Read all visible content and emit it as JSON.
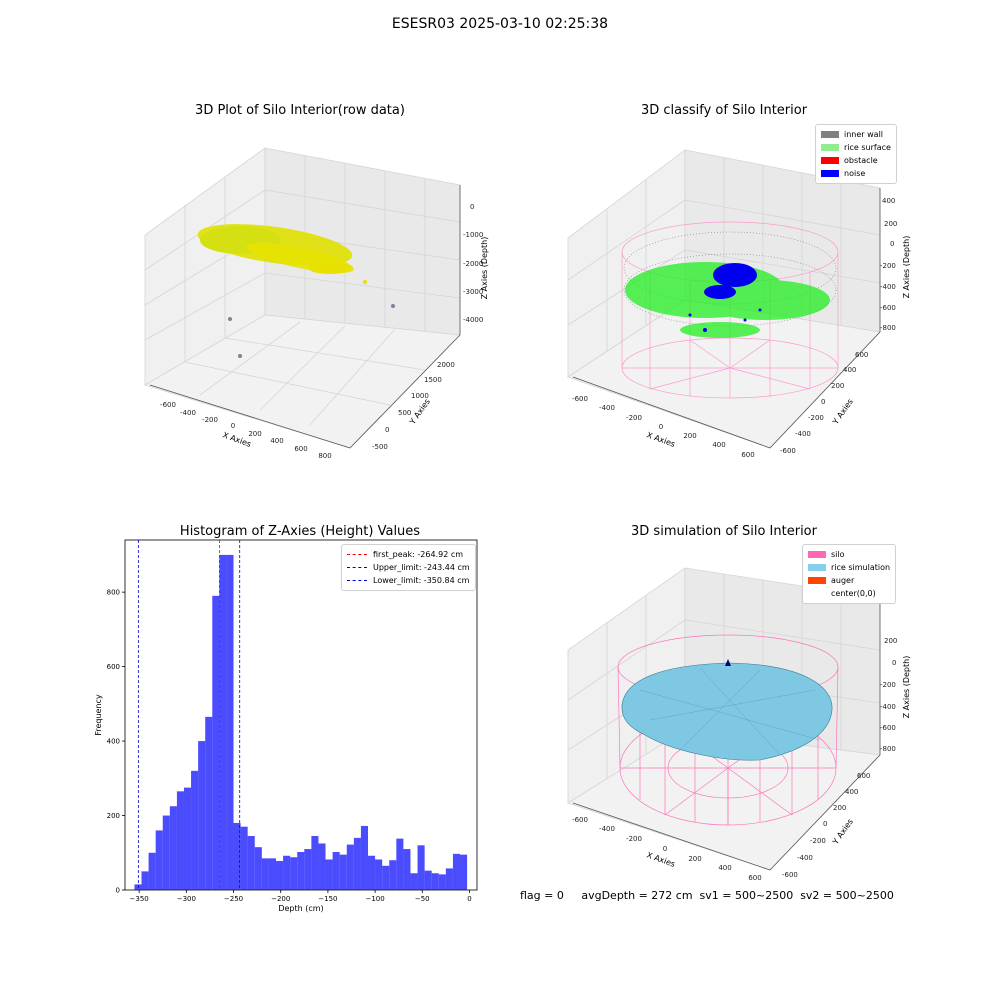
{
  "suptitle": "ESESR03 2025-03-10 02:25:38",
  "panels": {
    "raw": {
      "title": "3D Plot of Silo Interior(row data)",
      "xlabel": "X Axies",
      "ylabel": "Y Axies",
      "zlabel": "Z Axies (Depth)",
      "xticks": [
        "-600",
        "-400",
        "-200",
        "0",
        "200",
        "400",
        "600",
        "800"
      ],
      "yticks": [
        "-500",
        "0",
        "500",
        "1000",
        "1500",
        "2000"
      ],
      "zticks": [
        "0",
        "-1000",
        "-2000",
        "-3000",
        "-4000"
      ]
    },
    "classify": {
      "title": "3D classify of Silo Interior",
      "xlabel": "X Axies",
      "ylabel": "Y Axies",
      "zlabel": "Z Axies (Depth)",
      "xticks": [
        "-600",
        "-400",
        "-200",
        "0",
        "200",
        "400",
        "600"
      ],
      "yticks": [
        "-600",
        "-400",
        "-200",
        "0",
        "200",
        "400",
        "600"
      ],
      "zticks": [
        "400",
        "200",
        "0",
        "-200",
        "-400",
        "-600",
        "-800"
      ],
      "legend": [
        {
          "label": "inner wall",
          "color": "#808080"
        },
        {
          "label": "rice surface",
          "color": "#90ee90"
        },
        {
          "label": "obstacle",
          "color": "#ff0000"
        },
        {
          "label": "noise",
          "color": "#0000ff"
        }
      ]
    },
    "sim": {
      "title": "3D simulation of Silo Interior",
      "xlabel": "X Axies",
      "ylabel": "Y Axies",
      "zlabel": "Z Axies (Depth)",
      "xticks": [
        "-600",
        "-400",
        "-200",
        "0",
        "200",
        "400",
        "600"
      ],
      "yticks": [
        "-600",
        "-400",
        "-200",
        "0",
        "200",
        "400",
        "600"
      ],
      "zticks": [
        "200",
        "0",
        "-200",
        "-400",
        "-600",
        "-800"
      ],
      "legend": [
        {
          "label": "silo",
          "color": "#ff69b4"
        },
        {
          "label": "rice simulation",
          "color": "#87ceeb"
        },
        {
          "label": "auger",
          "color": "#ff4500"
        },
        {
          "label": "center(0,0)",
          "color": ""
        }
      ]
    }
  },
  "footer": {
    "text": "flag = 0     avgDepth = 272 cm  sv1 = 500~2500  sv2 = 500~2500"
  },
  "chart_data": {
    "type": "bar",
    "title": "Histogram of Z-Axies (Height) Values",
    "xlabel": "Depth (cm)",
    "ylabel": "Frequency",
    "xlim": [
      -365,
      8
    ],
    "ylim": [
      0,
      940
    ],
    "xticks": [
      -350,
      -300,
      -250,
      -200,
      -150,
      -100,
      -50,
      0
    ],
    "yticks": [
      0,
      200,
      400,
      600,
      800
    ],
    "bin_width": 7.5,
    "bin_start": -355,
    "values": [
      15,
      50,
      100,
      160,
      200,
      225,
      265,
      275,
      320,
      400,
      465,
      790,
      900,
      900,
      180,
      170,
      145,
      115,
      85,
      85,
      78,
      92,
      88,
      102,
      110,
      145,
      125,
      82,
      102,
      95,
      122,
      140,
      172,
      92,
      82,
      65,
      80,
      138,
      110,
      45,
      120,
      52,
      45,
      42,
      58,
      97,
      95
    ],
    "vlines": [
      {
        "label": "first_peak: -264.92 cm",
        "x": -264.92,
        "color": "#ff0000"
      },
      {
        "label": "Upper_limit: -243.44 cm",
        "x": -243.44,
        "color": "#0000cc"
      },
      {
        "label": "Lower_limit: -350.84 cm",
        "x": -350.84,
        "color": "#0000cc"
      }
    ],
    "bar_color": "#0000ff"
  }
}
